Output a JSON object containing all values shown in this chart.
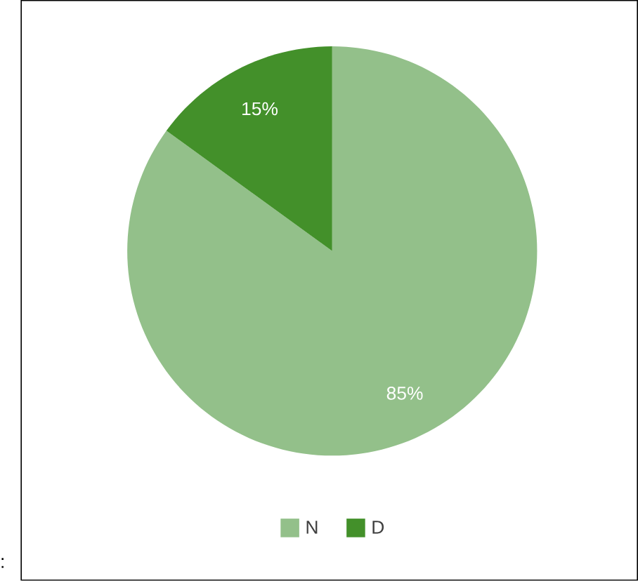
{
  "chart_data": {
    "type": "pie",
    "categories": [
      "N",
      "D"
    ],
    "values": [
      85,
      15
    ],
    "colors": [
      "#93c08a",
      "#43902a"
    ],
    "value_labels": [
      "85%",
      "15%"
    ],
    "legend": "bottom",
    "annotations": [
      ":"
    ]
  }
}
